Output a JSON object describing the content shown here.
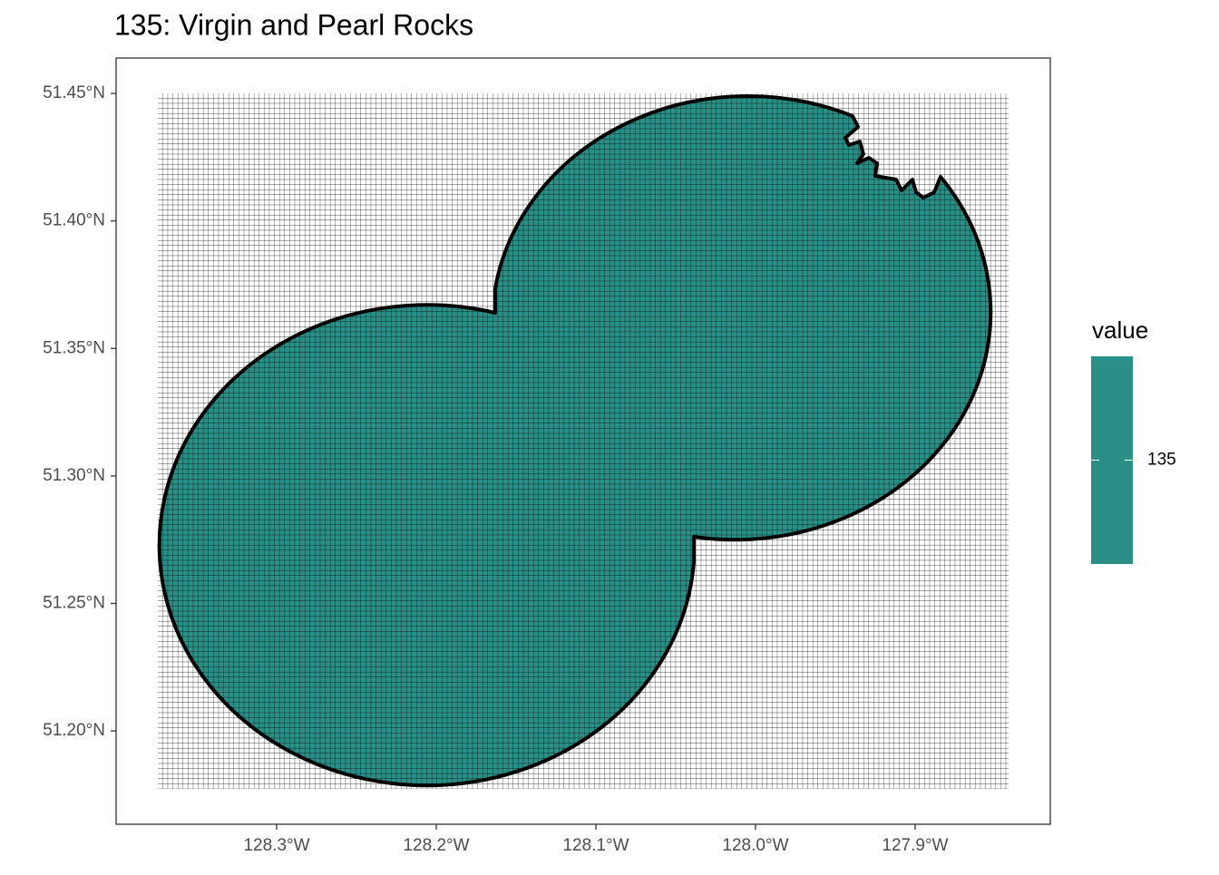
{
  "chart_data": {
    "type": "raster-map",
    "title": "135: Virgin and Pearl Rocks",
    "xlim": [
      -128.4006,
      -127.8153
    ],
    "ylim": [
      51.1634,
      51.4639
    ],
    "xticks": [
      {
        "value": -128.3,
        "label": "128.3°W"
      },
      {
        "value": -128.2,
        "label": "128.2°W"
      },
      {
        "value": -128.1,
        "label": "128.1°W"
      },
      {
        "value": -128.0,
        "label": "128.0°W"
      },
      {
        "value": -127.9,
        "label": "127.9°W"
      }
    ],
    "yticks": [
      {
        "value": 51.2,
        "label": "51.20°N"
      },
      {
        "value": 51.25,
        "label": "51.25°N"
      },
      {
        "value": 51.3,
        "label": "51.30°N"
      },
      {
        "value": 51.35,
        "label": "51.35°N"
      },
      {
        "value": 51.4,
        "label": "51.40°N"
      },
      {
        "value": 51.45,
        "label": "51.45°N"
      }
    ],
    "legend": {
      "title": "value",
      "ticks": [
        135
      ],
      "color": "#2a9087"
    }
  }
}
